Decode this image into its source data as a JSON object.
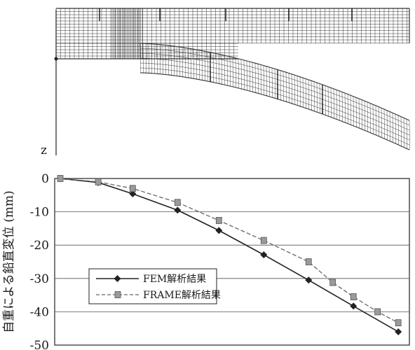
{
  "top_panel": {
    "axis_label": "z"
  },
  "chart_data": {
    "type": "line",
    "title": "",
    "xlabel": "",
    "ylabel": "自重による鉛直変位 (mm)",
    "ylim": [
      -50,
      0
    ],
    "yticks": [
      0,
      -10,
      -20,
      -30,
      -40,
      -50
    ],
    "ytick_labels": [
      "0",
      "-10",
      "-20",
      "-30",
      "-40",
      "-50"
    ],
    "x": [
      0,
      1,
      2,
      3,
      4,
      5,
      6,
      7,
      8,
      9,
      10
    ],
    "grid": true,
    "legend_position": "lower-left",
    "series": [
      {
        "name": "FEM解析結果",
        "values": [
          0,
          -1.2,
          -4.6,
          -9.5,
          -15.6,
          -22.9,
          -30.5,
          -38.3,
          -46.0
        ],
        "x": [
          0,
          1.1,
          2.1,
          3.4,
          4.6,
          5.9,
          7.2,
          8.5,
          9.8
        ],
        "color": "#222222",
        "marker": "diamond",
        "dash": "solid"
      },
      {
        "name": "FRAME解析結果",
        "values": [
          0,
          -1.0,
          -3.0,
          -7.2,
          -12.6,
          -18.6,
          -25.0,
          -31.2,
          -35.5,
          -40.0,
          -43.3
        ],
        "x": [
          0,
          1.1,
          2.1,
          3.4,
          4.6,
          5.9,
          7.2,
          7.9,
          8.5,
          9.2,
          9.8
        ],
        "color": "#666666",
        "marker": "square",
        "dash": "dashed"
      }
    ]
  }
}
